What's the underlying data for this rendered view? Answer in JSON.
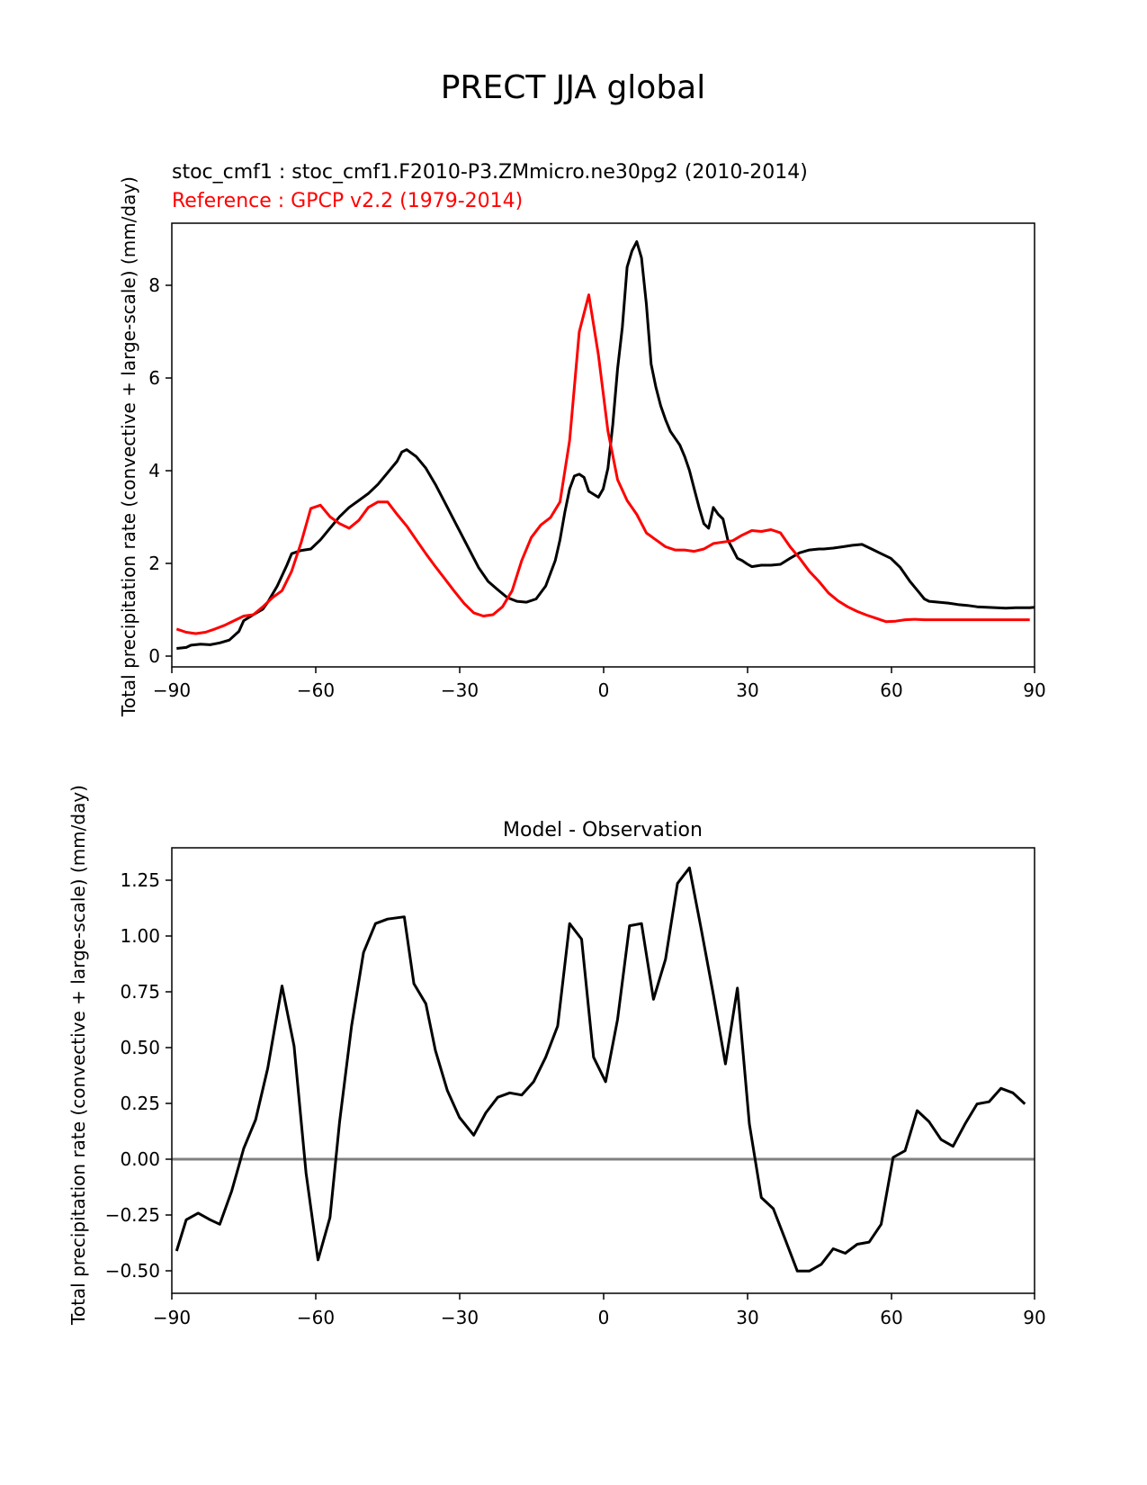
{
  "suptitle": "PRECT JJA global",
  "chart_data": [
    {
      "type": "line",
      "title_test": "stoc_cmf1 : stoc_cmf1.F2010-P3.ZMmicro.ne30pg2 (2010-2014)",
      "title_ref": "Reference : GPCP v2.2 (1979-2014)",
      "ylabel": "Total precipitation rate (convective + large-scale) (mm/day)",
      "xlim": [
        -90,
        90
      ],
      "ylim": [
        -0.25,
        9.35
      ],
      "xticks": [
        -90,
        -60,
        -30,
        0,
        30,
        60,
        90
      ],
      "xtick_labels": [
        "−90",
        "−60",
        "−30",
        "0",
        "30",
        "60",
        "90"
      ],
      "yticks": [
        0,
        2,
        4,
        6,
        8
      ],
      "ytick_labels": [
        "0",
        "2",
        "4",
        "6",
        "8"
      ],
      "series": [
        {
          "name": "stoc_cmf1",
          "color": "#000000",
          "x": [
            -89,
            -87,
            -86,
            -84,
            -82,
            -80,
            -78,
            -76,
            -75,
            -73,
            -71,
            -70,
            -68,
            -66,
            -65,
            -63,
            -61,
            -59,
            -57,
            -55,
            -53,
            -51,
            -49,
            -47,
            -45,
            -43,
            -42,
            -41,
            -39,
            -37,
            -35,
            -33,
            -31,
            -28,
            -26,
            -24,
            -22,
            -20,
            -18,
            -16,
            -14,
            -12,
            -10,
            -9,
            -8,
            -7,
            -6,
            -5,
            -4,
            -3,
            -1,
            0,
            1,
            2,
            3,
            4,
            5,
            6,
            7,
            8,
            9,
            10,
            11,
            12,
            13,
            14,
            15,
            16,
            17,
            18,
            19,
            20,
            21,
            22,
            23,
            24,
            25,
            26,
            27,
            28,
            29,
            30,
            31,
            33,
            35,
            37,
            39,
            41,
            43,
            45,
            46,
            48,
            50,
            52,
            54,
            56,
            58,
            60,
            62,
            64,
            66,
            67,
            68,
            70,
            72,
            74,
            76,
            78,
            80,
            82,
            84,
            86,
            87,
            89,
            90
          ],
          "y": [
            0.15,
            0.17,
            0.22,
            0.24,
            0.23,
            0.27,
            0.33,
            0.52,
            0.75,
            0.88,
            1.0,
            1.15,
            1.5,
            1.95,
            2.2,
            2.27,
            2.3,
            2.5,
            2.75,
            3.0,
            3.2,
            3.35,
            3.5,
            3.7,
            3.95,
            4.2,
            4.4,
            4.45,
            4.3,
            4.05,
            3.7,
            3.3,
            2.9,
            2.3,
            1.9,
            1.6,
            1.42,
            1.25,
            1.17,
            1.15,
            1.22,
            1.5,
            2.05,
            2.5,
            3.1,
            3.6,
            3.88,
            3.92,
            3.85,
            3.55,
            3.42,
            3.6,
            4.05,
            5.0,
            6.2,
            7.1,
            8.4,
            8.75,
            8.95,
            8.6,
            7.6,
            6.3,
            5.8,
            5.4,
            5.1,
            4.85,
            4.7,
            4.55,
            4.3,
            4.0,
            3.6,
            3.2,
            2.85,
            2.75,
            3.2,
            3.05,
            2.95,
            2.5,
            2.3,
            2.1,
            2.05,
            1.98,
            1.92,
            1.95,
            1.95,
            1.97,
            2.1,
            2.22,
            2.28,
            2.3,
            2.3,
            2.32,
            2.35,
            2.38,
            2.4,
            2.3,
            2.2,
            2.1,
            1.9,
            1.6,
            1.35,
            1.22,
            1.17,
            1.15,
            1.13,
            1.1,
            1.08,
            1.05,
            1.04,
            1.03,
            1.02,
            1.03,
            1.03,
            1.03,
            1.04
          ]
        },
        {
          "name": "Reference",
          "color": "#ff0000",
          "x": [
            -89,
            -87,
            -85,
            -83,
            -81,
            -79,
            -77,
            -75,
            -73,
            -71,
            -69,
            -67,
            -65,
            -63,
            -61,
            -59,
            -57,
            -55,
            -53,
            -51,
            -49,
            -47,
            -45,
            -43,
            -41,
            -39,
            -37,
            -35,
            -33,
            -31,
            -29,
            -27,
            -25,
            -23,
            -21,
            -19,
            -17,
            -15,
            -13,
            -11,
            -9,
            -7,
            -5,
            -3,
            -1,
            1,
            3,
            5,
            7,
            9,
            11,
            13,
            15,
            17,
            19,
            21,
            23,
            25,
            27,
            29,
            31,
            33,
            35,
            37,
            39,
            41,
            43,
            45,
            47,
            49,
            51,
            53,
            55,
            57,
            59,
            61,
            63,
            65,
            67,
            69,
            71,
            73,
            75,
            77,
            79,
            81,
            83,
            85,
            87,
            89
          ],
          "y": [
            0.57,
            0.5,
            0.47,
            0.5,
            0.57,
            0.65,
            0.75,
            0.85,
            0.88,
            1.05,
            1.25,
            1.4,
            1.82,
            2.45,
            3.18,
            3.25,
            3.0,
            2.85,
            2.75,
            2.92,
            3.2,
            3.32,
            3.32,
            3.05,
            2.8,
            2.5,
            2.2,
            1.92,
            1.65,
            1.38,
            1.12,
            0.92,
            0.85,
            0.88,
            1.05,
            1.4,
            2.05,
            2.55,
            2.82,
            2.98,
            3.32,
            4.65,
            7.0,
            7.8,
            6.5,
            4.85,
            3.8,
            3.35,
            3.05,
            2.65,
            2.5,
            2.35,
            2.28,
            2.28,
            2.25,
            2.3,
            2.42,
            2.45,
            2.48,
            2.6,
            2.7,
            2.68,
            2.72,
            2.65,
            2.35,
            2.1,
            1.82,
            1.6,
            1.35,
            1.18,
            1.05,
            0.95,
            0.87,
            0.8,
            0.73,
            0.74,
            0.77,
            0.78,
            0.77,
            0.77,
            0.77,
            0.77,
            0.77,
            0.77,
            0.77,
            0.77,
            0.77,
            0.77,
            0.77,
            0.77
          ]
        }
      ]
    },
    {
      "type": "line",
      "title": "Model - Observation",
      "ylabel": "Total precipitation rate (convective + large-scale) (mm/day)",
      "xlim": [
        -90,
        90
      ],
      "ylim": [
        -0.61,
        1.39
      ],
      "xticks": [
        -90,
        -60,
        -30,
        0,
        30,
        60,
        90
      ],
      "xtick_labels": [
        "−90",
        "−60",
        "−30",
        "0",
        "30",
        "60",
        "90"
      ],
      "yticks": [
        -0.5,
        -0.25,
        0,
        0.25,
        0.5,
        0.75,
        1.0,
        1.25
      ],
      "ytick_labels": [
        "−0.50",
        "−0.25",
        "0.00",
        "0.25",
        "0.50",
        "0.75",
        "1.00",
        "1.25"
      ],
      "zero_line": true,
      "series": [
        {
          "name": "difference",
          "color": "#000000",
          "x": [
            -89,
            -87,
            -84.5,
            -82,
            -80,
            -77.5,
            -75,
            -72.5,
            -70,
            -67,
            -64.5,
            -62,
            -59.5,
            -57,
            -55,
            -52.5,
            -50,
            -47.5,
            -45,
            -41.5,
            -39.5,
            -37,
            -35,
            -32.5,
            -30,
            -27,
            -24.5,
            -22,
            -19.5,
            -17,
            -14.5,
            -12,
            -9.5,
            -7,
            -4.5,
            -2,
            0.5,
            3,
            5.5,
            8,
            10.5,
            13,
            15.5,
            18,
            20.5,
            23,
            25.5,
            28,
            30.5,
            33,
            35.5,
            38,
            40.5,
            43,
            45.5,
            48,
            50.5,
            53,
            55.5,
            58,
            60.5,
            63,
            65.5,
            68,
            70.5,
            73,
            75.5,
            78,
            80.5,
            83,
            85.5,
            88
          ],
          "y": [
            -0.42,
            -0.28,
            -0.25,
            -0.28,
            -0.3,
            -0.15,
            0.04,
            0.17,
            0.4,
            0.77,
            0.5,
            -0.07,
            -0.46,
            -0.27,
            0.16,
            0.59,
            0.92,
            1.05,
            1.07,
            1.08,
            0.78,
            0.69,
            0.48,
            0.3,
            0.18,
            0.1,
            0.2,
            0.27,
            0.29,
            0.28,
            0.34,
            0.45,
            0.59,
            1.05,
            0.98,
            0.45,
            0.34,
            0.62,
            1.04,
            1.05,
            0.71,
            0.89,
            1.23,
            1.3,
            1.02,
            0.73,
            0.42,
            0.76,
            0.15,
            -0.18,
            -0.23,
            -0.37,
            -0.51,
            -0.51,
            -0.48,
            -0.41,
            -0.43,
            -0.39,
            -0.38,
            -0.3,
            0.0,
            0.03,
            0.21,
            0.16,
            0.08,
            0.05,
            0.15,
            0.24,
            0.25,
            0.31,
            0.29,
            0.24
          ]
        }
      ]
    }
  ]
}
